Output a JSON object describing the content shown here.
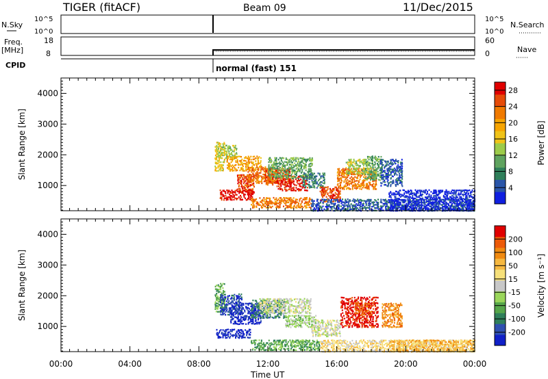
{
  "header": {
    "title": "TIGER (fitACF)",
    "beam": "Beam 09",
    "date": "11/Dec/2015"
  },
  "left_labels": {
    "nsky": "N.Sky",
    "freq": "Freq.",
    "mhz": "[MHz]",
    "cpid": "CPID"
  },
  "right_labels": {
    "nsearch": "N.Search",
    "nave": "Nave"
  },
  "strip_ticks": {
    "nsky_hi": "10^5",
    "nsky_lo": "10^0",
    "nsearch_hi": "10^5",
    "nsearch_lo": "10^0",
    "freq_hi": "18",
    "freq_lo": "8",
    "nave_hi": "60",
    "nave_lo": "0"
  },
  "cpid_text": "normal (fast) 151",
  "chart_data": [
    {
      "type": "heatmap",
      "title": "",
      "xlabel": "Time UT",
      "ylabel": "Slant Range [km]",
      "xlim": [
        "00:00",
        "24:00"
      ],
      "ylim": [
        180,
        4500
      ],
      "x_ticks": [
        "00:00",
        "04:00",
        "08:00",
        "12:00",
        "16:00",
        "20:00",
        "00:00"
      ],
      "y_ticks": [
        "1000",
        "2000",
        "3000",
        "4000"
      ],
      "colorbar": {
        "label": "Power [dB]",
        "ticks": [
          "4",
          "8",
          "12",
          "16",
          "20",
          "24",
          "28"
        ],
        "colors": [
          "#0f1fe0",
          "#2a55a8",
          "#2f7f5a",
          "#5fa35f",
          "#9ccb4a",
          "#f0c318",
          "#f6a400",
          "#f07a00",
          "#e64b08",
          "#e00000"
        ]
      },
      "scatter_blobs": [
        {
          "t0": 8.9,
          "t1": 9.5,
          "r0": 1500,
          "r1": 2450,
          "c": 5
        },
        {
          "t0": 9.0,
          "t1": 10.2,
          "r0": 1900,
          "r1": 2350,
          "c": 4
        },
        {
          "t0": 9.6,
          "t1": 11.6,
          "r0": 1500,
          "r1": 2000,
          "c": 6
        },
        {
          "t0": 10.2,
          "t1": 11.2,
          "r0": 800,
          "r1": 1400,
          "c": 8
        },
        {
          "t0": 10.8,
          "t1": 12.6,
          "r0": 1100,
          "r1": 1650,
          "c": 7
        },
        {
          "t0": 11.8,
          "t1": 13.3,
          "r0": 1050,
          "r1": 1600,
          "c": 8
        },
        {
          "t0": 12.5,
          "t1": 14.3,
          "r0": 850,
          "r1": 1350,
          "c": 9
        },
        {
          "t0": 9.2,
          "t1": 11.2,
          "r0": 550,
          "r1": 900,
          "c": 9
        },
        {
          "t0": 12.0,
          "t1": 14.6,
          "r0": 1250,
          "r1": 1950,
          "c": 3
        },
        {
          "t0": 14.0,
          "t1": 15.3,
          "r0": 950,
          "r1": 1450,
          "c": 2
        },
        {
          "t0": 15.0,
          "t1": 16.2,
          "r0": 500,
          "r1": 1000,
          "c": 8
        },
        {
          "t0": 16.0,
          "t1": 18.3,
          "r0": 900,
          "r1": 1600,
          "c": 7
        },
        {
          "t0": 16.5,
          "t1": 17.8,
          "r0": 1400,
          "r1": 1900,
          "c": 4
        },
        {
          "t0": 17.6,
          "t1": 18.6,
          "r0": 1200,
          "r1": 2000,
          "c": 3
        },
        {
          "t0": 18.5,
          "t1": 19.8,
          "r0": 1000,
          "r1": 1900,
          "c": 1
        },
        {
          "t0": 11.0,
          "t1": 14.5,
          "r0": 300,
          "r1": 650,
          "c": 7
        },
        {
          "t0": 14.5,
          "t1": 24.0,
          "r0": 200,
          "r1": 600,
          "c": 1
        },
        {
          "t0": 19.0,
          "t1": 24.0,
          "r0": 200,
          "r1": 900,
          "c": 0
        }
      ]
    },
    {
      "type": "heatmap",
      "title": "",
      "xlabel": "Time UT",
      "ylabel": "Slant Range [km]",
      "xlim": [
        "00:00",
        "24:00"
      ],
      "ylim": [
        180,
        4500
      ],
      "x_ticks": [
        "00:00",
        "04:00",
        "08:00",
        "12:00",
        "16:00",
        "20:00",
        "00:00"
      ],
      "y_ticks": [
        "1000",
        "2000",
        "3000",
        "4000"
      ],
      "colorbar": {
        "label": "Velocity [m s⁻¹]",
        "ticks": [
          "200",
          "100",
          "50",
          "15",
          "-15",
          "-50",
          "-100",
          "-200"
        ],
        "colors": [
          "#1020c8",
          "#2f50b0",
          "#2f7f5a",
          "#56a64a",
          "#9ad65a",
          "#c8c8c8",
          "#f6e07a",
          "#f6b840",
          "#f08a10",
          "#ec5a08",
          "#e00000"
        ]
      },
      "scatter_blobs": [
        {
          "t0": 8.9,
          "t1": 9.5,
          "r0": 1500,
          "r1": 2450,
          "c": 3
        },
        {
          "t0": 9.2,
          "t1": 10.5,
          "r0": 1400,
          "r1": 2100,
          "c": 1
        },
        {
          "t0": 9.8,
          "t1": 11.6,
          "r0": 1100,
          "r1": 1800,
          "c": 0
        },
        {
          "t0": 9.0,
          "t1": 11.0,
          "r0": 650,
          "r1": 950,
          "c": 0
        },
        {
          "t0": 11.0,
          "t1": 13.0,
          "r0": 1300,
          "r1": 1900,
          "c": 2
        },
        {
          "t0": 11.5,
          "t1": 14.5,
          "r0": 1450,
          "r1": 1950,
          "c": 5
        },
        {
          "t0": 13.0,
          "t1": 14.8,
          "r0": 1000,
          "r1": 1400,
          "c": 4
        },
        {
          "t0": 14.5,
          "t1": 16.2,
          "r0": 700,
          "r1": 1250,
          "c": 5
        },
        {
          "t0": 16.2,
          "t1": 18.4,
          "r0": 1000,
          "r1": 2000,
          "c": 10
        },
        {
          "t0": 17.0,
          "t1": 18.0,
          "r0": 1400,
          "r1": 1800,
          "c": 9
        },
        {
          "t0": 18.6,
          "t1": 19.8,
          "r0": 1000,
          "r1": 1800,
          "c": 8
        },
        {
          "t0": 11.0,
          "t1": 15.0,
          "r0": 250,
          "r1": 600,
          "c": 3
        },
        {
          "t0": 15.0,
          "t1": 24.0,
          "r0": 200,
          "r1": 600,
          "c": 6
        },
        {
          "t0": 19.0,
          "t1": 24.0,
          "r0": 200,
          "r1": 600,
          "c": 7
        }
      ]
    }
  ]
}
